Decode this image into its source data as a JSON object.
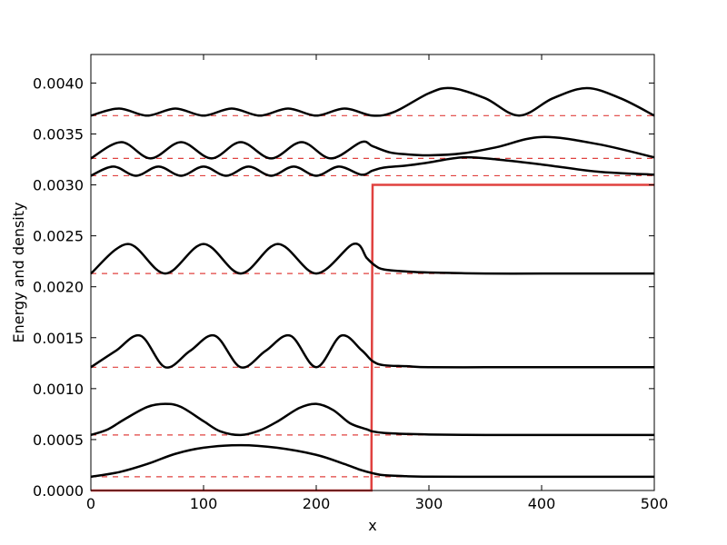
{
  "chart_data": {
    "type": "line",
    "title": "",
    "xlabel": "x",
    "ylabel": "Energy and density",
    "xlim": [
      0,
      500
    ],
    "ylim": [
      0,
      0.00428
    ],
    "x_ticks": [
      "0",
      "100",
      "200",
      "300",
      "400",
      "500"
    ],
    "y_ticks": [
      "0.0000",
      "0.0005",
      "0.0010",
      "0.0015",
      "0.0020",
      "0.0025",
      "0.0030",
      "0.0035",
      "0.0040"
    ],
    "grid": false,
    "legend": "none",
    "colors": {
      "density": "#000000",
      "potential": "#e0413f",
      "energy_level": "#e0413f"
    },
    "potential": {
      "x": [
        0,
        249,
        249,
        250,
        500
      ],
      "y": [
        0,
        0,
        0.0003,
        0.003,
        0.003
      ]
    },
    "energy_levels": [
      0.000135,
      0.000545,
      0.00121,
      0.00213,
      0.00309,
      0.00326,
      0.00368
    ],
    "series": [
      {
        "x": [
          0,
          25,
          50,
          75,
          100,
          133,
          165,
          200,
          225,
          240,
          250,
          260,
          280,
          300,
          350,
          400,
          450,
          500
        ],
        "y": [
          0.000135,
          0.00018,
          0.00026,
          0.00036,
          0.00042,
          0.000445,
          0.00042,
          0.00035,
          0.00026,
          0.0002,
          0.00017,
          0.00015,
          0.00014,
          0.000136,
          0.000135,
          0.000135,
          0.000135,
          0.000135
        ]
      },
      {
        "x": [
          0,
          15,
          30,
          50,
          66,
          80,
          100,
          115,
          133,
          150,
          166,
          185,
          200,
          215,
          230,
          245,
          250,
          260,
          280,
          300,
          350,
          400,
          450,
          500
        ],
        "y": [
          0.000545,
          0.0006,
          0.0007,
          0.00082,
          0.00085,
          0.00082,
          0.00068,
          0.00058,
          0.000545,
          0.00059,
          0.00068,
          0.00081,
          0.00085,
          0.00079,
          0.00066,
          0.0006,
          0.00058,
          0.000565,
          0.000555,
          0.00055,
          0.000545,
          0.000545,
          0.000545,
          0.000545
        ]
      },
      {
        "x": [
          0,
          22,
          44,
          66,
          88,
          110,
          133,
          155,
          177,
          200,
          222,
          240,
          250,
          260,
          280,
          300,
          350,
          400,
          450,
          500
        ],
        "y": [
          0.00121,
          0.00137,
          0.00152,
          0.00121,
          0.00137,
          0.00152,
          0.00121,
          0.00137,
          0.00152,
          0.00121,
          0.00152,
          0.00138,
          0.00127,
          0.00123,
          0.00122,
          0.00121,
          0.00121,
          0.00121,
          0.00121,
          0.00121
        ]
      },
      {
        "x": [
          0,
          33,
          66,
          100,
          133,
          166,
          200,
          233,
          245,
          252,
          260,
          280,
          300,
          350,
          400,
          450,
          500
        ],
        "y": [
          0.00213,
          0.00242,
          0.00213,
          0.00242,
          0.00213,
          0.00242,
          0.00213,
          0.00242,
          0.00228,
          0.00221,
          0.00217,
          0.00215,
          0.00214,
          0.00213,
          0.00213,
          0.00213,
          0.00213
        ]
      },
      {
        "x": [
          0,
          20,
          40,
          60,
          80,
          100,
          120,
          140,
          160,
          180,
          200,
          220,
          240,
          250,
          260,
          280,
          300,
          330,
          360,
          400,
          450,
          500
        ],
        "y": [
          0.00309,
          0.00318,
          0.00309,
          0.00318,
          0.00309,
          0.00318,
          0.00309,
          0.00318,
          0.00309,
          0.00318,
          0.00309,
          0.00318,
          0.0031,
          0.00314,
          0.00317,
          0.00319,
          0.00322,
          0.00327,
          0.00325,
          0.0032,
          0.00313,
          0.0031
        ]
      },
      {
        "x": [
          0,
          27,
          53,
          80,
          107,
          133,
          160,
          187,
          213,
          240,
          250,
          265,
          280,
          300,
          330,
          360,
          400,
          450,
          500
        ],
        "y": [
          0.00326,
          0.00342,
          0.00326,
          0.00342,
          0.00326,
          0.00342,
          0.00326,
          0.00342,
          0.00326,
          0.00342,
          0.00338,
          0.00332,
          0.0033,
          0.00329,
          0.00331,
          0.00337,
          0.00347,
          0.0034,
          0.00327
        ]
      },
      {
        "x": [
          0,
          25,
          50,
          75,
          100,
          125,
          150,
          175,
          200,
          225,
          250,
          270,
          300,
          320,
          350,
          380,
          410,
          440,
          470,
          500
        ],
        "y": [
          0.00368,
          0.00375,
          0.00368,
          0.00375,
          0.00368,
          0.00375,
          0.00368,
          0.00375,
          0.00368,
          0.00375,
          0.00368,
          0.00372,
          0.0039,
          0.00395,
          0.00385,
          0.00368,
          0.00385,
          0.00395,
          0.00385,
          0.00368
        ]
      }
    ]
  }
}
